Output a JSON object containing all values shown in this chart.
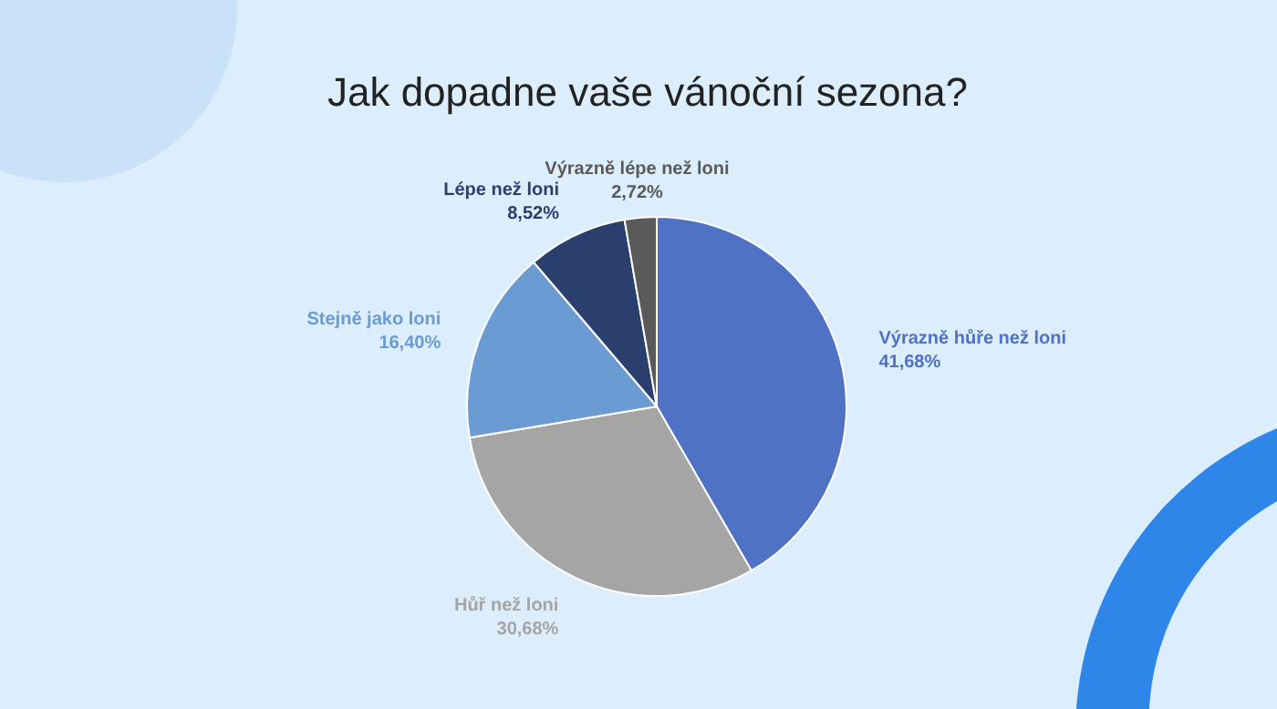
{
  "chart_data": {
    "type": "pie",
    "title": "Jak dopadne vaše vánoční sezona?",
    "categories": [
      "Výrazně hůře než loni",
      "Hůř než loni",
      "Stejně jako loni",
      "Lépe než loni",
      "Výrazně lépe než loni"
    ],
    "values": [
      41.68,
      30.68,
      16.4,
      8.52,
      2.72
    ],
    "colors": [
      "#4f72c4",
      "#a5a5a5",
      "#6a9bd3",
      "#2b3f6e",
      "#5a5a5a"
    ],
    "value_labels": [
      "41,68%",
      "30,68%",
      "16,40%",
      "8,52%",
      "2,72%"
    ],
    "legend": false
  }
}
